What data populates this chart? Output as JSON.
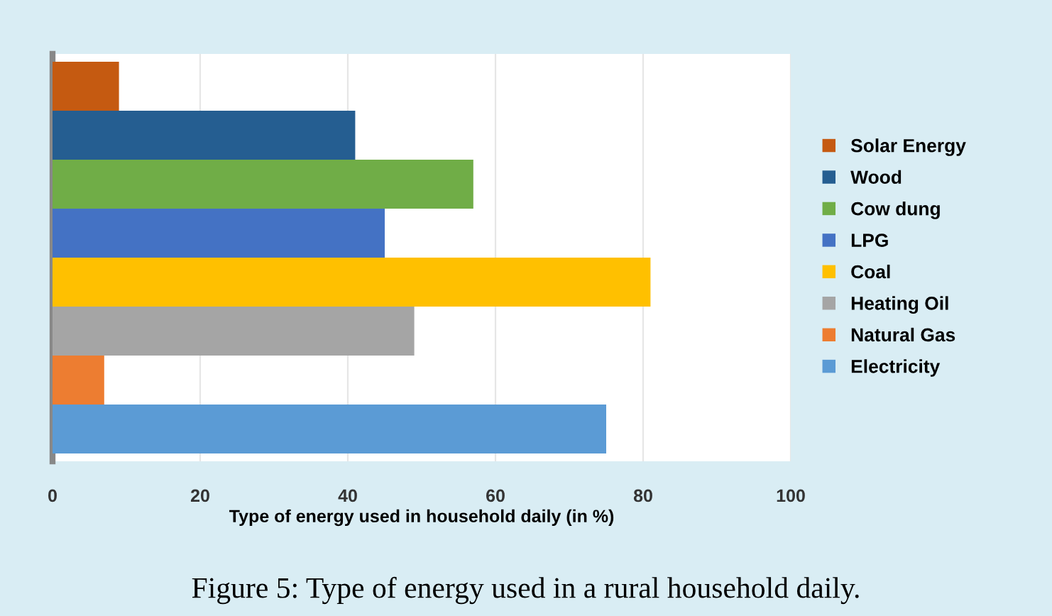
{
  "chart_data": {
    "type": "bar",
    "orientation": "horizontal",
    "xlabel": "Type of energy used in household daily (in %)",
    "categories": [
      null
    ],
    "series": [
      {
        "name": "Solar Energy",
        "color": "#c55a11",
        "values": [
          9
        ]
      },
      {
        "name": "Wood",
        "color": "#255e91",
        "values": [
          41
        ]
      },
      {
        "name": "Cow dung",
        "color": "#70ad47",
        "values": [
          57
        ]
      },
      {
        "name": "LPG",
        "color": "#4472c4",
        "values": [
          45
        ]
      },
      {
        "name": "Coal",
        "color": "#ffc000",
        "values": [
          81
        ]
      },
      {
        "name": "Heating Oil",
        "color": "#a5a5a5",
        "values": [
          49
        ]
      },
      {
        "name": "Natural Gas",
        "color": "#ed7d31",
        "values": [
          7
        ]
      },
      {
        "name": "Electricity",
        "color": "#5b9bd5",
        "values": [
          75
        ]
      }
    ],
    "xlim": [
      0,
      100
    ],
    "xticks": [
      0,
      20,
      40,
      60,
      80,
      100
    ],
    "grid": "x",
    "legend": "right",
    "annotations": [
      "Figure 5: Type of energy used in a rural household daily."
    ]
  }
}
